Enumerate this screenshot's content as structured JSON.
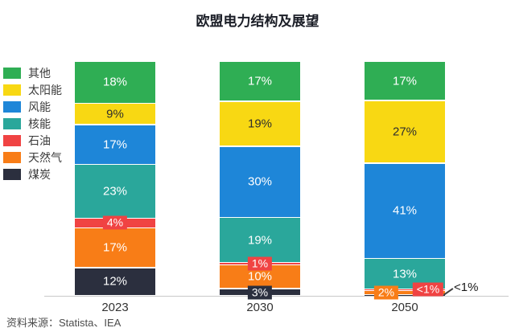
{
  "title": "欧盟电力结构及展望",
  "source": "资料来源：Statista、IEA",
  "chart_data": {
    "type": "bar",
    "subtype": "stacked-100-percent",
    "title": "欧盟电力结构及展望",
    "unit": "%",
    "categories": [
      "2023",
      "2030",
      "2050"
    ],
    "series": [
      {
        "key": "other",
        "name": "其他",
        "color": "#2fae54",
        "values": [
          18,
          17,
          17
        ],
        "labels": [
          "18%",
          "17%",
          "17%"
        ]
      },
      {
        "key": "solar",
        "name": "太阳能",
        "color": "#f8d813",
        "values": [
          9,
          19,
          27
        ],
        "labels": [
          "9%",
          "19%",
          "27%"
        ],
        "label_color": "#2e2e2e"
      },
      {
        "key": "wind",
        "name": "风能",
        "color": "#1e86d8",
        "values": [
          17,
          30,
          41
        ],
        "labels": [
          "17%",
          "30%",
          "41%"
        ]
      },
      {
        "key": "nuclear",
        "name": "核能",
        "color": "#2aa79b",
        "values": [
          23,
          19,
          13
        ],
        "labels": [
          "23%",
          "19%",
          "13%"
        ]
      },
      {
        "key": "oil",
        "name": "石油",
        "color": "#f04343",
        "values": [
          4,
          1,
          0.5
        ],
        "labels": [
          "4%",
          "1%",
          "<1%"
        ]
      },
      {
        "key": "gas",
        "name": "天然气",
        "color": "#f87d17",
        "values": [
          17,
          10,
          2
        ],
        "labels": [
          "17%",
          "10%",
          "2%"
        ]
      },
      {
        "key": "coal",
        "name": "煤炭",
        "color": "#2b2f3e",
        "values": [
          12,
          3,
          0.5
        ],
        "labels": [
          "12%",
          "3%",
          "<1%"
        ]
      }
    ],
    "legend_position": "left",
    "grid": false,
    "ylim": [
      0,
      100
    ],
    "label_hints": {
      "2050": {
        "石油": {
          "mode": "chip",
          "dx": 29
        },
        "天然气": {
          "mode": "chip",
          "dx": -23
        },
        "煤炭": {
          "mode": "none"
        }
      }
    },
    "annotations": [
      {
        "text": "<1%",
        "category": "2050",
        "series": "煤炭"
      }
    ]
  }
}
